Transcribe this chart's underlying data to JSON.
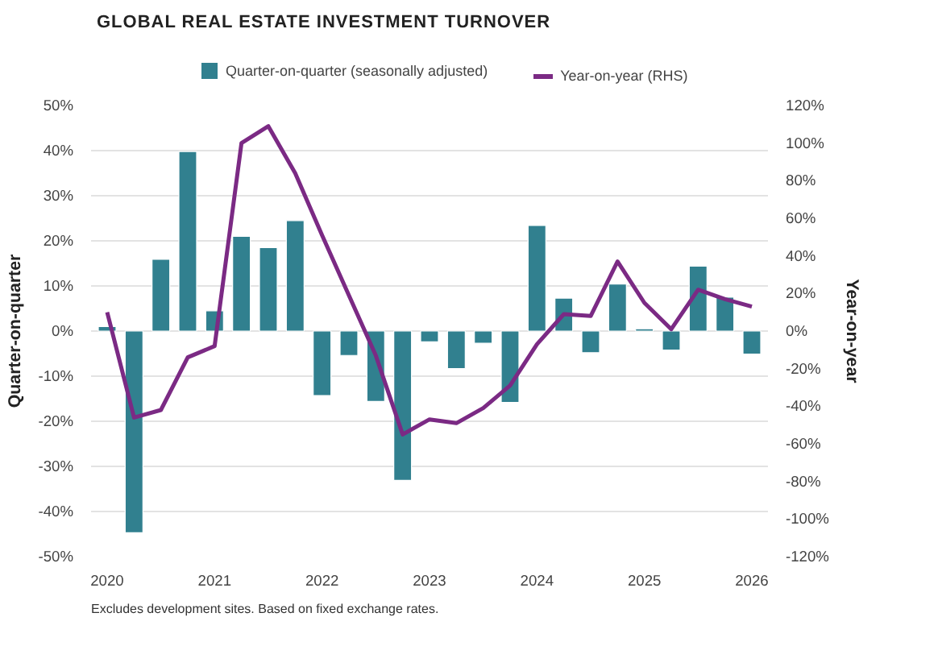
{
  "chart_data": {
    "type": "bar",
    "title": "GLOBAL REAL ESTATE INVESTMENT TURNOVER",
    "ylabel": "Quarter-on-quarter",
    "y2label": "Year-on-year",
    "x": [
      2020,
      2020.25,
      2020.5,
      2020.75,
      2021,
      2021.25,
      2021.5,
      2021.75,
      2022,
      2022.25,
      2022.5,
      2022.75,
      2023,
      2023.25,
      2023.5,
      2023.75,
      2024,
      2024.25,
      2024.5,
      2024.75,
      2025,
      2025.25,
      2025.5,
      2025.75,
      2026
    ],
    "series": [
      {
        "name": "Quarter-on-quarter (seasonally adjusted)",
        "color": "#31808f",
        "values": [
          1.0,
          -44.7,
          15.9,
          39.8,
          4.5,
          21.0,
          18.5,
          24.5,
          -14.3,
          -5.4,
          -15.6,
          -33.1,
          -2.4,
          -8.3,
          -2.7,
          -15.8,
          23.4,
          7.3,
          -4.8,
          10.4,
          0.5,
          -4.2,
          14.4,
          7.5,
          -5.1
        ]
      },
      {
        "name": "Year-on-year (RHS)",
        "type": "line",
        "axis": "y2",
        "color": "#7b2a84",
        "values": [
          10,
          -46,
          -42,
          -14,
          -8,
          100,
          109,
          84,
          51,
          19,
          -13,
          -55,
          -47,
          -49,
          -41,
          -29,
          -7,
          9,
          8,
          37,
          15,
          1,
          22,
          17,
          13
        ]
      }
    ],
    "xlim": [
      2019.85,
      2026.15
    ],
    "xticks": [
      2020,
      2021,
      2022,
      2023,
      2024,
      2025,
      2026
    ],
    "ylim": [
      -50,
      50
    ],
    "yticks": [
      {
        "value": -50,
        "label": "-50%"
      },
      {
        "value": -40,
        "label": "-40%"
      },
      {
        "value": -30,
        "label": "-30%"
      },
      {
        "value": -20,
        "label": "-20%"
      },
      {
        "value": -10,
        "label": "-10%"
      },
      {
        "value": 0,
        "label": "0%"
      },
      {
        "value": 10,
        "label": "10%"
      },
      {
        "value": 20,
        "label": "20%"
      },
      {
        "value": 30,
        "label": "30%"
      },
      {
        "value": 40,
        "label": "40%"
      },
      {
        "value": 50,
        "label": "50%"
      }
    ],
    "y2lim": [
      -120,
      120
    ],
    "y2ticks": [
      {
        "value": -120,
        "label": "-120%"
      },
      {
        "value": -100,
        "label": "-100%"
      },
      {
        "value": -80,
        "label": "-80%"
      },
      {
        "value": -60,
        "label": "-60%"
      },
      {
        "value": -40,
        "label": "-40%"
      },
      {
        "value": -20,
        "label": "-20%"
      },
      {
        "value": 0,
        "label": "0%"
      },
      {
        "value": 20,
        "label": "20%"
      },
      {
        "value": 40,
        "label": "40%"
      },
      {
        "value": 60,
        "label": "60%"
      },
      {
        "value": 80,
        "label": "80%"
      },
      {
        "value": 100,
        "label": "100%"
      },
      {
        "value": 120,
        "label": "120%"
      }
    ],
    "grid": "y",
    "legend": "top",
    "annotations": [
      "Excludes development sites. Based on fixed exchange rates."
    ]
  }
}
